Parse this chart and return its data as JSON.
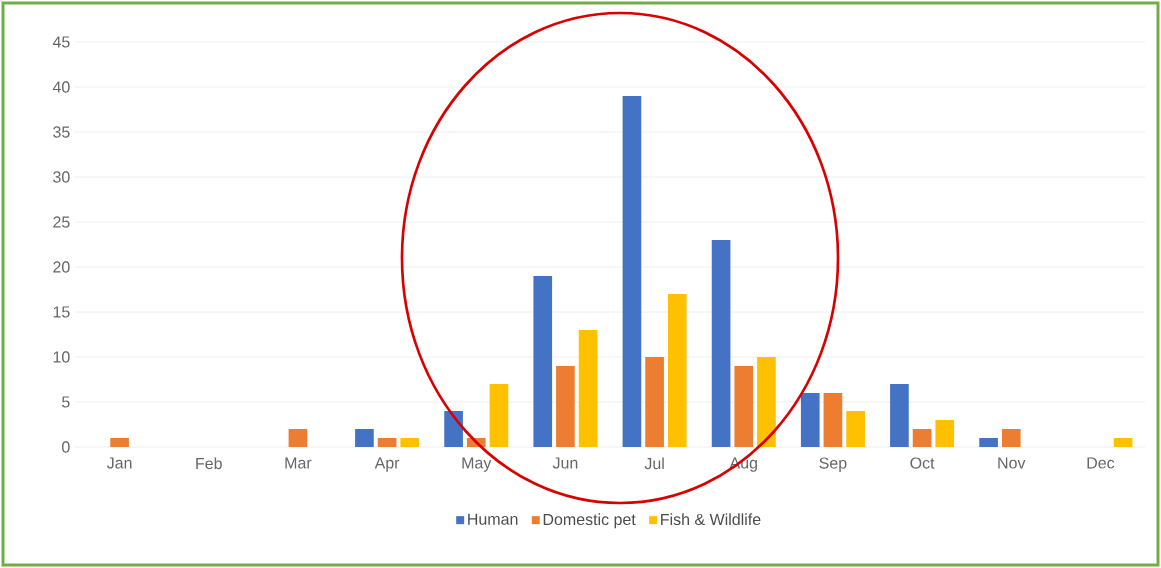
{
  "chart_data": {
    "type": "bar",
    "categories": [
      "Jan",
      "Feb",
      "Mar",
      "Apr",
      "May",
      "Jun",
      "Jul",
      "Aug",
      "Sep",
      "Oct",
      "Nov",
      "Dec"
    ],
    "series": [
      {
        "name": "Human",
        "color": "#4472c4",
        "values": [
          0,
          0,
          0,
          2,
          4,
          19,
          39,
          23,
          6,
          7,
          1,
          0
        ]
      },
      {
        "name": "Domestic pet",
        "color": "#ed7d31",
        "values": [
          1,
          0,
          2,
          1,
          1,
          9,
          10,
          9,
          6,
          2,
          2,
          0
        ]
      },
      {
        "name": "Fish & Wildlife",
        "color": "#ffc000",
        "values": [
          0,
          0,
          0,
          1,
          7,
          13,
          17,
          10,
          4,
          3,
          0,
          1
        ]
      }
    ],
    "ylim": [
      0,
      45
    ],
    "yticks": [
      0,
      5,
      10,
      15,
      20,
      25,
      30,
      35,
      40,
      45
    ],
    "grid": "y",
    "legend": "bottom"
  }
}
